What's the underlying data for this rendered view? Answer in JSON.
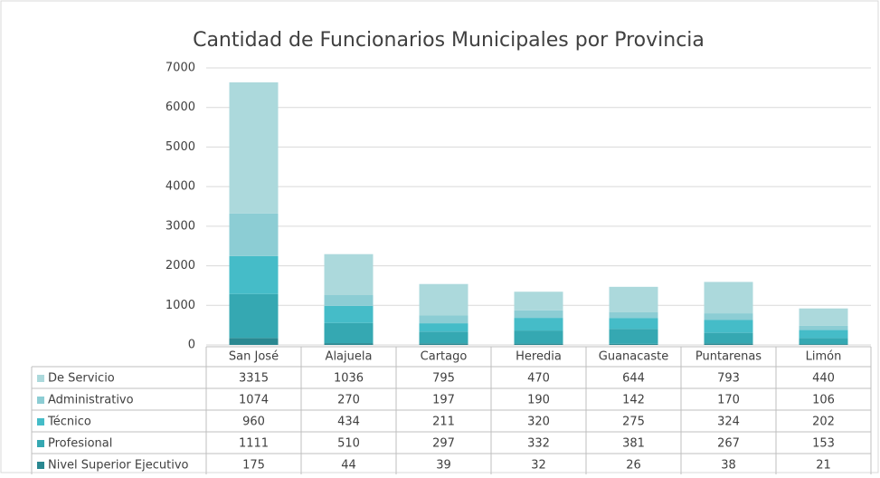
{
  "chart_data": {
    "type": "bar",
    "stacked": true,
    "title": "Cantidad de Funcionarios Municipales por Provincia",
    "categories": [
      "San José",
      "Alajuela",
      "Cartago",
      "Heredia",
      "Guanacaste",
      "Puntarenas",
      "Limón"
    ],
    "series": [
      {
        "name": "De Servicio",
        "color": "#acd9dc",
        "values": [
          3315,
          1036,
          795,
          470,
          644,
          793,
          440
        ]
      },
      {
        "name": "Administrativo",
        "color": "#8ccdd4",
        "values": [
          1074,
          270,
          197,
          190,
          142,
          170,
          106
        ]
      },
      {
        "name": "Técnico",
        "color": "#45bcc8",
        "values": [
          960,
          434,
          211,
          320,
          275,
          324,
          202
        ]
      },
      {
        "name": "Profesional",
        "color": "#35a8b2",
        "values": [
          1111,
          510,
          297,
          332,
          381,
          267,
          153
        ]
      },
      {
        "name": "Nivel Superior Ejecutivo",
        "color": "#2a8891",
        "values": [
          175,
          44,
          39,
          32,
          26,
          38,
          21
        ]
      }
    ],
    "ylim": [
      0,
      7000
    ],
    "yticks": [
      0,
      1000,
      2000,
      3000,
      4000,
      5000,
      6000,
      7000
    ],
    "grid": true
  }
}
